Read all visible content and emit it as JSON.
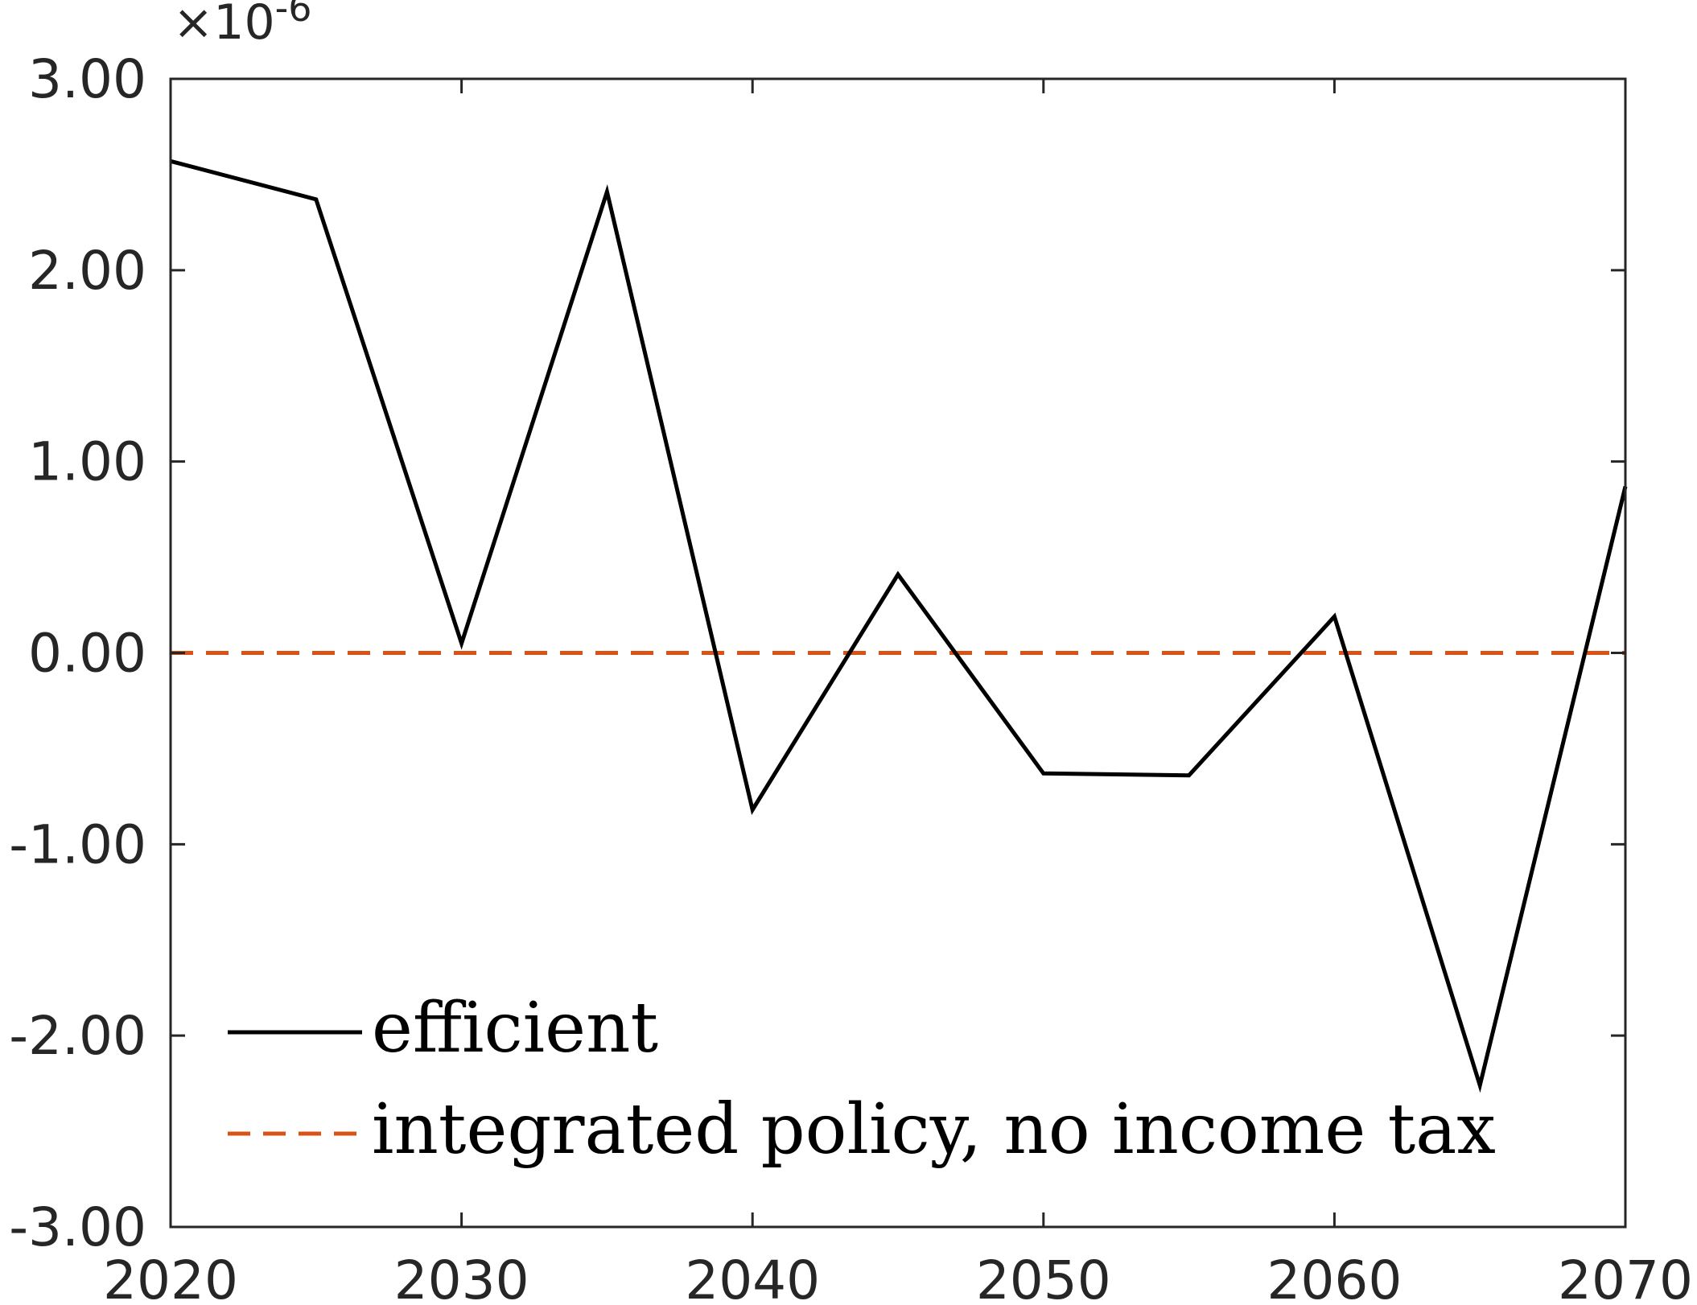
{
  "chart_data": {
    "type": "line",
    "title": "",
    "xlabel": "",
    "ylabel": "",
    "y_exponent_label": "×10",
    "y_exponent_power": "-6",
    "xlim": [
      2020,
      2070
    ],
    "ylim": [
      -3.0,
      3.0
    ],
    "y_multiplier": 1e-06,
    "xticks": [
      2020,
      2030,
      2040,
      2050,
      2060,
      2070
    ],
    "xtick_labels": [
      "2020",
      "2030",
      "2040",
      "2050",
      "2060",
      "2070"
    ],
    "yticks": [
      3.0,
      2.0,
      1.0,
      0.0,
      -1.0,
      -2.0,
      -3.0
    ],
    "ytick_labels": [
      "3.00",
      "2.00",
      "1.00",
      "0.00",
      "-1.00",
      "-2.00",
      "-3.00"
    ],
    "grid": false,
    "legend_position": "bottom-left",
    "series": [
      {
        "name": "efficient",
        "color": "#000000",
        "style": "solid",
        "x": [
          2020,
          2025,
          2030,
          2035,
          2040,
          2045,
          2050,
          2055,
          2060,
          2065,
          2070
        ],
        "y": [
          2.57,
          2.37,
          0.05,
          2.41,
          -0.82,
          0.41,
          -0.63,
          -0.64,
          0.19,
          -2.26,
          0.87
        ]
      },
      {
        "name": "integrated policy, no income tax",
        "color": "#D95319",
        "style": "dashed",
        "x": [
          2020,
          2025,
          2030,
          2035,
          2040,
          2045,
          2050,
          2055,
          2060,
          2065,
          2070
        ],
        "y": [
          0,
          0,
          0,
          0,
          0,
          0,
          0,
          0,
          0,
          0,
          0
        ]
      }
    ]
  }
}
